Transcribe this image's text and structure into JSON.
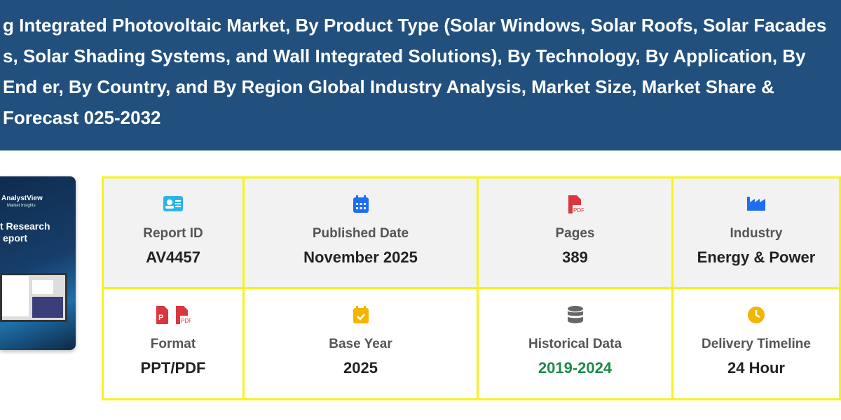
{
  "header": {
    "title_lines": [
      "g Integrated Photovoltaic Market, By Product Type (Solar Windows, Solar Roofs, Solar Facades",
      "s, Solar Shading Systems, and Wall Integrated Solutions), By Technology, By Application, By End",
      "er, By Country, and By Region Global Industry Analysis, Market Size, Market Share & Forecast",
      "025-2032"
    ]
  },
  "cover": {
    "brand": "AnalystView",
    "tagline": "Market Insights",
    "title_1": "t Research",
    "title_2": "eport"
  },
  "info": [
    {
      "label": "Report ID",
      "value": "AV4457",
      "icon": "id-card-icon",
      "color": "#2cb5e8"
    },
    {
      "label": "Published Date",
      "value": "November 2025",
      "icon": "calendar-icon",
      "color": "#1d6ef0"
    },
    {
      "label": "Pages",
      "value": "389",
      "icon": "pdf-file-icon",
      "color": "#d9363e"
    },
    {
      "label": "Industry",
      "value": "Energy & Power",
      "icon": "industry-icon",
      "color": "#1d6ef0"
    },
    {
      "label": "Format",
      "value": "PPT/PDF",
      "icon": "ppt-pdf-icon",
      "color": "#d9363e"
    },
    {
      "label": "Base Year",
      "value": "2025",
      "icon": "calendar-check-icon",
      "color": "#f5b400"
    },
    {
      "label": "Historical Data",
      "value": "2019-2024",
      "icon": "database-icon",
      "color": "#666666",
      "value_color": "#1e8a4a"
    },
    {
      "label": "Delivery Timeline",
      "value": "24 Hour",
      "icon": "clock-icon",
      "color": "#f5b400"
    }
  ]
}
